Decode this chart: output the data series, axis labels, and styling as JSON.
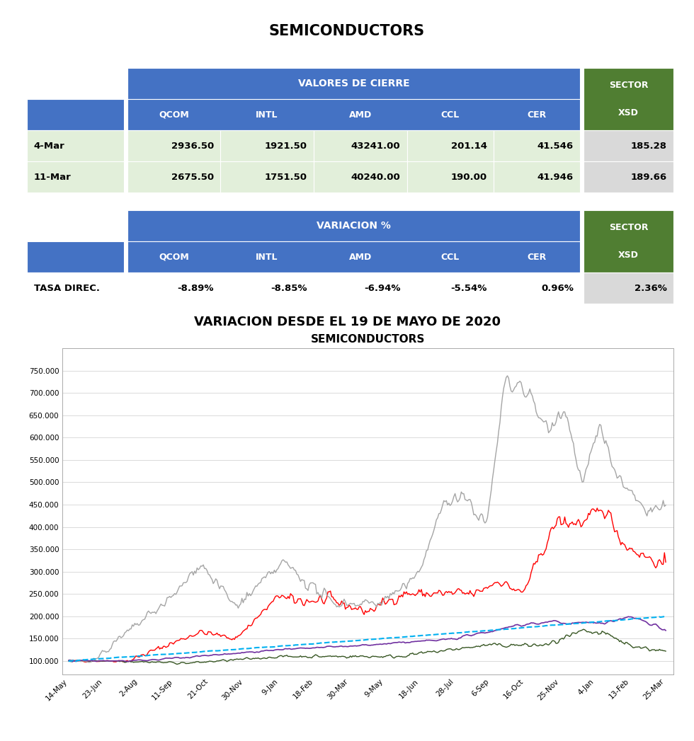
{
  "title_top": "SEMICONDUCTORS",
  "title_chart2": "VARIACION DESDE EL 19 DE MAYO DE 2020",
  "chart_inner_title": "SEMICONDUCTORS",
  "blue_header_color": "#4472C4",
  "green_header_color": "#507E32",
  "light_green_row": "#E2EFDA",
  "light_gray_row": "#D9D9D9",
  "white_row": "#FFFFFF",
  "table1_subheaders": [
    "",
    "QCOM",
    "INTL",
    "AMD",
    "CCL",
    "CER",
    "XSD"
  ],
  "table1_rows": [
    [
      "4-Mar",
      "2936.50",
      "1921.50",
      "43241.00",
      "201.14",
      "41.546",
      "185.28"
    ],
    [
      "11-Mar",
      "2675.50",
      "1751.50",
      "40240.00",
      "190.00",
      "41.946",
      "189.66"
    ]
  ],
  "table2_subheaders": [
    "",
    "QCOM",
    "INTL",
    "AMD",
    "CCL",
    "CER",
    "XSD"
  ],
  "table2_rows": [
    [
      "TASA DIREC.",
      "-8.89%",
      "-8.85%",
      "-6.94%",
      "-5.54%",
      "0.96%",
      "2.36%"
    ]
  ],
  "ytick_labels": [
    "100.000",
    "150.000",
    "200.000",
    "250.000",
    "300.000",
    "350.000",
    "400.000",
    "450.000",
    "500.000",
    "550.000",
    "600.000",
    "650.000",
    "700.000",
    "750.000"
  ],
  "line_colors": {
    "QCOM": "#FF0000",
    "INTL": "#375623",
    "AMD": "#A5A5A5",
    "CCL": "#7030A0",
    "CER": "#00B0F0"
  },
  "line_styles": {
    "QCOM": "-",
    "INTL": "-",
    "AMD": "-",
    "CCL": "-",
    "CER": "--"
  },
  "xtick_labels": [
    "14-May",
    "23-Jun",
    "2-Aug",
    "11-Sep",
    "21-Oct",
    "30-Nov",
    "9-Jan",
    "18-Feb",
    "30-Mar",
    "9-May",
    "18-Jun",
    "28-Jul",
    "6-Sep",
    "16-Oct",
    "25-Nov",
    "4-Jan",
    "13-Feb",
    "25-Mar"
  ]
}
